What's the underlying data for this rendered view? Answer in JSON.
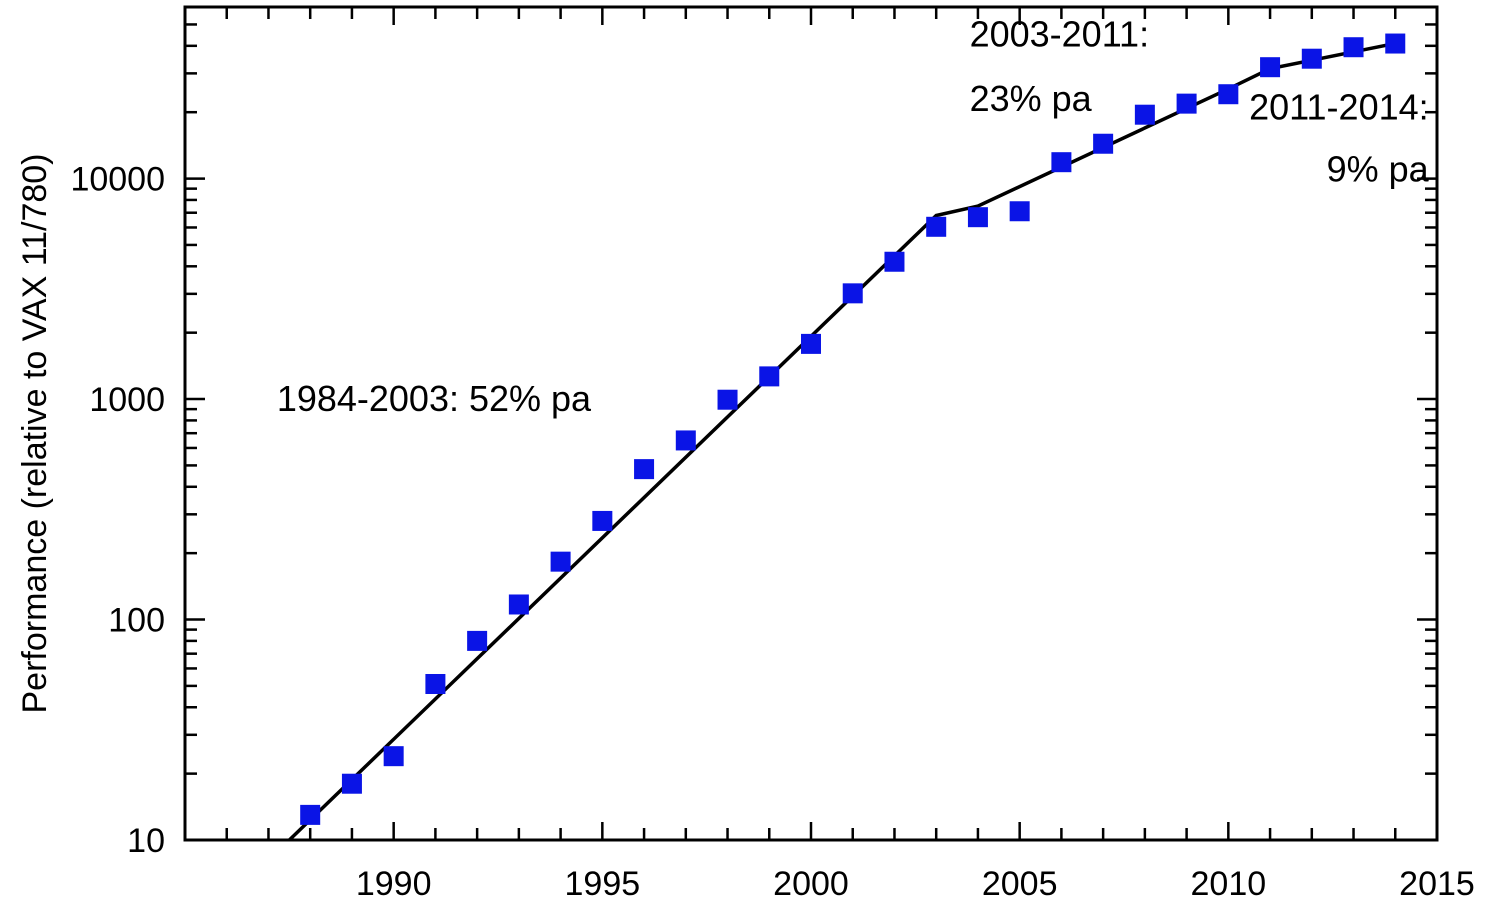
{
  "chart_data": {
    "type": "scatter",
    "title": "",
    "xlabel": "",
    "ylabel": "Performance (relative to VAX 11/780)",
    "xlim": [
      1985,
      2015
    ],
    "ylim": [
      10,
      60000
    ],
    "y_scale": "log",
    "grid": false,
    "x_ticks": [
      1990,
      1995,
      2000,
      2005,
      2010,
      2015
    ],
    "x_tick_labels": [
      "1990",
      "1995",
      "2000",
      "2005",
      "2010",
      "2015"
    ],
    "y_ticks": [
      10,
      100,
      1000,
      10000
    ],
    "y_tick_labels": [
      "10",
      "100",
      "1000",
      "10000"
    ],
    "marker_color": "#0a14e6",
    "line_color": "#000000",
    "series": [
      {
        "type": "scatter",
        "x": [
          1988,
          1989,
          1990,
          1991,
          1992,
          1993,
          1994,
          1995,
          1996,
          1997,
          1998,
          1999,
          2000,
          2001,
          2002,
          2003,
          2004,
          2005,
          2006,
          2007,
          2008,
          2009,
          2010,
          2011,
          2012,
          2013,
          2014
        ],
        "y": [
          13,
          18,
          24,
          51,
          80,
          117,
          183,
          280,
          481,
          649,
          993,
          1267,
          1779,
          3016,
          4195,
          6043,
          6681,
          7108,
          11865,
          14387,
          19484,
          21871,
          24129,
          31999,
          34967,
          39419,
          40967
        ]
      },
      {
        "type": "line",
        "x": [
          1987.5,
          2003,
          2004,
          2010,
          2011,
          2014
        ],
        "y": [
          10,
          6800,
          7500,
          25500,
          31500,
          41000
        ]
      }
    ],
    "annotations": [
      {
        "text": "1984-2003: 52% pa",
        "x": 1987.2,
        "y": 1000
      },
      {
        "text": "2003-2011:",
        "x": 2003.8,
        "y": 45000
      },
      {
        "text": "23% pa",
        "x": 2003.8,
        "y": 23000
      },
      {
        "text": "2011-2014:",
        "x": 2014.8,
        "y": 21000
      },
      {
        "text": "9% pa",
        "x": 2014.8,
        "y": 11000
      }
    ]
  }
}
